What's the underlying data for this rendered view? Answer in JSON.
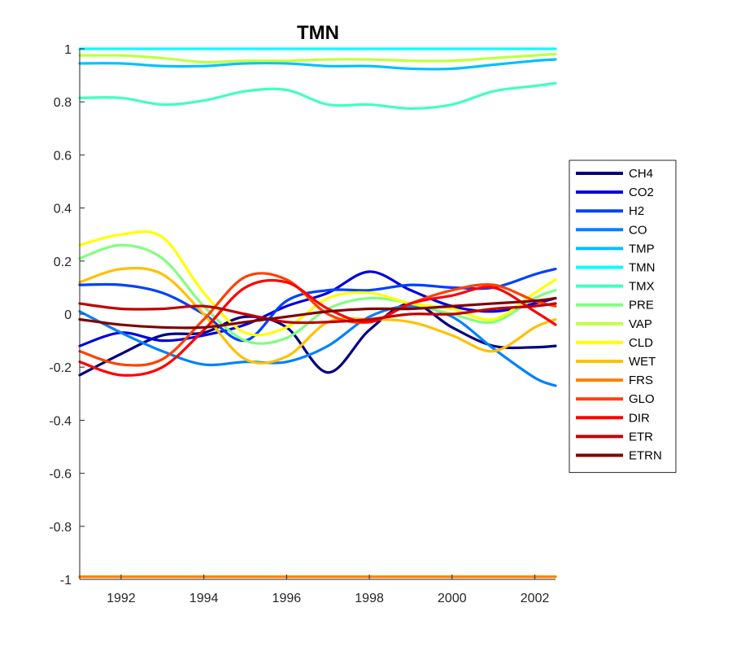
{
  "chart_data": {
    "type": "line",
    "title": "TMN",
    "xlabel": "",
    "ylabel": "",
    "xlim": [
      1991,
      2002.5
    ],
    "ylim": [
      -1,
      1
    ],
    "grid": false,
    "legend_position": "right",
    "xticks": [
      1992,
      1994,
      1996,
      1998,
      2000,
      2002
    ],
    "xtick_labels": [
      "1992",
      "1994",
      "1996",
      "1998",
      "2000",
      "2002"
    ],
    "yticks": [
      -1,
      -0.8,
      -0.6,
      -0.4,
      -0.2,
      0,
      0.2,
      0.4,
      0.6,
      0.8,
      1
    ],
    "ytick_labels": [
      "-1",
      "-0.8",
      "-0.6",
      "-0.4",
      "-0.2",
      "0",
      "0.2",
      "0.4",
      "0.6",
      "0.8",
      "1"
    ],
    "x": [
      1991,
      1992,
      1993,
      1994,
      1995,
      1996,
      1997,
      1998,
      1999,
      2000,
      2001,
      2002,
      2002.5
    ],
    "series": [
      {
        "name": "CH4",
        "color": "#000080",
        "values": [
          -0.23,
          -0.15,
          -0.08,
          -0.07,
          -0.01,
          -0.05,
          -0.22,
          -0.06,
          0.04,
          -0.05,
          -0.12,
          -0.125,
          -0.12
        ]
      },
      {
        "name": "CO2",
        "color": "#0000e0",
        "values": [
          -0.12,
          -0.07,
          -0.1,
          -0.08,
          -0.04,
          0.03,
          0.08,
          0.16,
          0.09,
          0.03,
          0.01,
          0.04,
          0.06
        ]
      },
      {
        "name": "H2",
        "color": "#0040ff",
        "values": [
          0.11,
          0.11,
          0.08,
          0.0,
          -0.1,
          0.05,
          0.09,
          0.09,
          0.11,
          0.1,
          0.1,
          0.15,
          0.17
        ]
      },
      {
        "name": "CO",
        "color": "#0080ff",
        "values": [
          0.01,
          -0.07,
          -0.14,
          -0.19,
          -0.18,
          -0.18,
          -0.12,
          -0.01,
          0.03,
          -0.01,
          -0.13,
          -0.24,
          -0.27
        ]
      },
      {
        "name": "TMP",
        "color": "#00c0ff",
        "values": [
          0.945,
          0.945,
          0.935,
          0.935,
          0.945,
          0.945,
          0.935,
          0.935,
          0.925,
          0.925,
          0.94,
          0.955,
          0.96
        ]
      },
      {
        "name": "TMN",
        "color": "#00ffff",
        "values": [
          1,
          1,
          1,
          1,
          1,
          1,
          1,
          1,
          1,
          1,
          1,
          1,
          1
        ]
      },
      {
        "name": "TMX",
        "color": "#40ffc0",
        "values": [
          0.815,
          0.815,
          0.79,
          0.805,
          0.84,
          0.845,
          0.79,
          0.79,
          0.775,
          0.79,
          0.84,
          0.86,
          0.87
        ]
      },
      {
        "name": "PRE",
        "color": "#80ff80",
        "values": [
          0.21,
          0.26,
          0.21,
          0.03,
          -0.1,
          -0.09,
          0.02,
          0.06,
          0.04,
          0.0,
          -0.03,
          0.06,
          0.09
        ]
      },
      {
        "name": "VAP",
        "color": "#c0ff40",
        "values": [
          0.975,
          0.975,
          0.965,
          0.95,
          0.955,
          0.955,
          0.96,
          0.96,
          0.955,
          0.955,
          0.965,
          0.975,
          0.98
        ]
      },
      {
        "name": "CLD",
        "color": "#ffff00",
        "values": [
          0.26,
          0.3,
          0.29,
          0.08,
          -0.07,
          -0.05,
          0.06,
          0.08,
          0.04,
          0.02,
          -0.02,
          0.08,
          0.13
        ]
      },
      {
        "name": "WET",
        "color": "#ffc000",
        "values": [
          0.12,
          0.17,
          0.15,
          0.0,
          -0.17,
          -0.16,
          -0.03,
          -0.02,
          -0.03,
          -0.08,
          -0.14,
          -0.05,
          -0.02
        ]
      },
      {
        "name": "FRS",
        "color": "#ff8000",
        "values": [
          -0.99,
          -0.99,
          -0.99,
          -0.99,
          -0.99,
          -0.99,
          -0.99,
          -0.99,
          -0.99,
          -0.99,
          -0.99,
          -0.99,
          -0.99
        ]
      },
      {
        "name": "GLO",
        "color": "#ff4000",
        "values": [
          -0.14,
          -0.19,
          -0.17,
          -0.02,
          0.14,
          0.13,
          0.0,
          -0.03,
          0.04,
          0.09,
          0.11,
          0.05,
          0.03
        ]
      },
      {
        "name": "DIR",
        "color": "#ff0000",
        "values": [
          -0.18,
          -0.23,
          -0.2,
          -0.06,
          0.1,
          0.12,
          0.02,
          -0.03,
          0.04,
          0.07,
          0.1,
          0.01,
          -0.04
        ]
      },
      {
        "name": "ETR",
        "color": "#c00000",
        "values": [
          0.04,
          0.02,
          0.02,
          0.03,
          0.0,
          -0.03,
          -0.03,
          -0.02,
          0.0,
          0.0,
          0.02,
          0.03,
          0.04
        ]
      },
      {
        "name": "ETRN",
        "color": "#800000",
        "values": [
          -0.02,
          -0.04,
          -0.05,
          -0.05,
          -0.03,
          -0.01,
          0.01,
          0.02,
          0.02,
          0.03,
          0.04,
          0.05,
          0.06
        ]
      }
    ]
  }
}
